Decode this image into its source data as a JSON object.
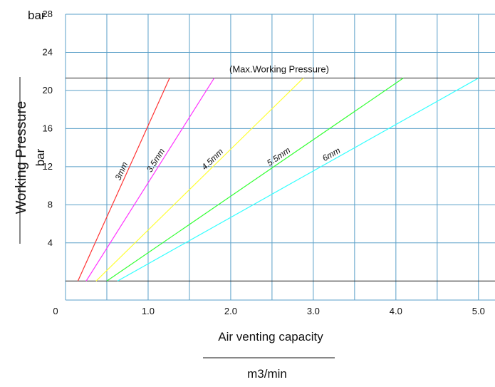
{
  "chart_data": {
    "type": "line",
    "ylabel": "Working Pressure",
    "ylabel_unit": "bar",
    "y_unit_top": "bar",
    "xlabel": "Air venting capacity",
    "xlabel_unit": "m3/min",
    "xlim": [
      0,
      5.2
    ],
    "ylim": [
      -2,
      28
    ],
    "x_ticks": [
      "0",
      "1.0",
      "2.0",
      "3.0",
      "4.0",
      "5.0"
    ],
    "y_ticks": [
      "4",
      "8",
      "12",
      "16",
      "20",
      "24",
      "28"
    ],
    "grid": true,
    "max_pressure": 21.3,
    "max_pressure_label": "(Max.Working Pressure)",
    "series": [
      {
        "name": "3mm",
        "x": [
          0.15,
          1.26
        ],
        "y": [
          0,
          21.3
        ],
        "color": "#ff3333"
      },
      {
        "name": "3.5mm",
        "x": [
          0.25,
          1.8
        ],
        "y": [
          0,
          21.3
        ],
        "color": "#ff33ff"
      },
      {
        "name": "4.5mm",
        "x": [
          0.37,
          2.88
        ],
        "y": [
          0,
          21.3
        ],
        "color": "#ffff33"
      },
      {
        "name": "5.5mm",
        "x": [
          0.5,
          4.09
        ],
        "y": [
          0,
          21.3
        ],
        "color": "#33ff33"
      },
      {
        "name": "6mm",
        "x": [
          0.63,
          5.0
        ],
        "y": [
          0,
          21.3
        ],
        "color": "#33ffff"
      }
    ]
  }
}
